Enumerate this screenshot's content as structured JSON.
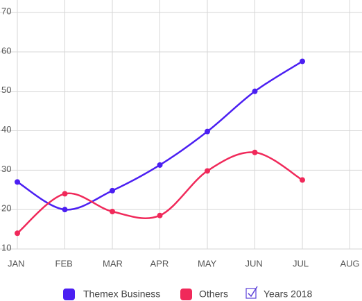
{
  "chart_data": {
    "type": "line",
    "categories": [
      "JAN",
      "FEB",
      "MAR",
      "APR",
      "MAY",
      "JUN",
      "JUL",
      "AUG"
    ],
    "series": [
      {
        "name": "Themex Business",
        "color": "#4b1ff2",
        "values": [
          27,
          20,
          24.8,
          31.3,
          39.8,
          50,
          57.6,
          null
        ]
      },
      {
        "name": "Others",
        "color": "#f0295a",
        "values": [
          14,
          24,
          19.5,
          18.5,
          29.8,
          34.5,
          27.5,
          null
        ]
      }
    ],
    "ylim": [
      10,
      70
    ],
    "yticks": [
      10,
      20,
      30,
      40,
      50,
      60,
      70
    ],
    "grid": true,
    "smooth": true,
    "legend": "bottom",
    "legend_toggle": "Years 2018"
  }
}
